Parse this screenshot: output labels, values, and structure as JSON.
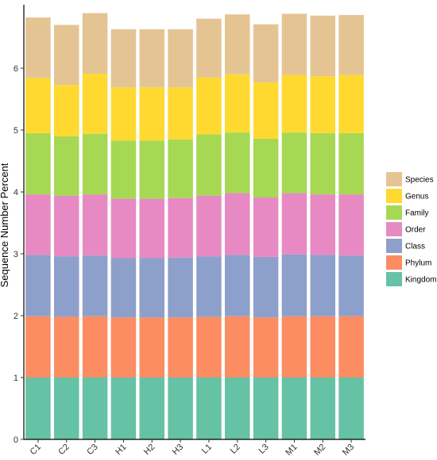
{
  "chart_data": {
    "type": "bar",
    "stacked": true,
    "categories": [
      "C1",
      "C2",
      "C3",
      "H1",
      "H2",
      "H3",
      "L1",
      "L2",
      "L3",
      "M1",
      "M2",
      "M3"
    ],
    "ylabel": "Sequence Number Percent",
    "ylim": [
      0,
      7
    ],
    "yticks": [
      0,
      1,
      2,
      3,
      4,
      5,
      6
    ],
    "grid": false,
    "legend_position": "right",
    "series": [
      {
        "name": "Kingdom",
        "color": "#66C2A5",
        "values": [
          1.0,
          1.0,
          1.0,
          1.0,
          1.0,
          1.0,
          1.0,
          1.0,
          1.0,
          1.0,
          1.0,
          1.0
        ]
      },
      {
        "name": "Phylum",
        "color": "#FC8D62",
        "values": [
          0.99,
          0.98,
          0.99,
          0.97,
          0.97,
          0.97,
          0.98,
          0.99,
          0.97,
          0.99,
          0.99,
          0.99
        ]
      },
      {
        "name": "Class",
        "color": "#8DA0CB",
        "values": [
          0.99,
          0.98,
          0.98,
          0.96,
          0.96,
          0.97,
          0.98,
          0.99,
          0.98,
          1.0,
          0.99,
          0.98
        ]
      },
      {
        "name": "Order",
        "color": "#E78AC3",
        "values": [
          0.98,
          0.98,
          0.99,
          0.96,
          0.96,
          0.96,
          0.98,
          1.0,
          0.96,
          0.99,
          0.98,
          0.99
        ]
      },
      {
        "name": "Family",
        "color": "#A6D854",
        "values": [
          0.99,
          0.96,
          0.98,
          0.94,
          0.94,
          0.95,
          0.99,
          0.98,
          0.95,
          0.98,
          0.99,
          0.99
        ]
      },
      {
        "name": "Genus",
        "color": "#FFD92F",
        "values": [
          0.89,
          0.83,
          0.97,
          0.86,
          0.86,
          0.84,
          0.92,
          0.94,
          0.91,
          0.93,
          0.92,
          0.94
        ]
      },
      {
        "name": "Species",
        "color": "#E5C494",
        "values": [
          0.98,
          0.97,
          0.98,
          0.94,
          0.94,
          0.94,
          0.95,
          0.97,
          0.94,
          0.99,
          0.98,
          0.97
        ]
      }
    ],
    "legend_order": [
      "Species",
      "Genus",
      "Family",
      "Order",
      "Class",
      "Phylum",
      "Kingdom"
    ]
  }
}
